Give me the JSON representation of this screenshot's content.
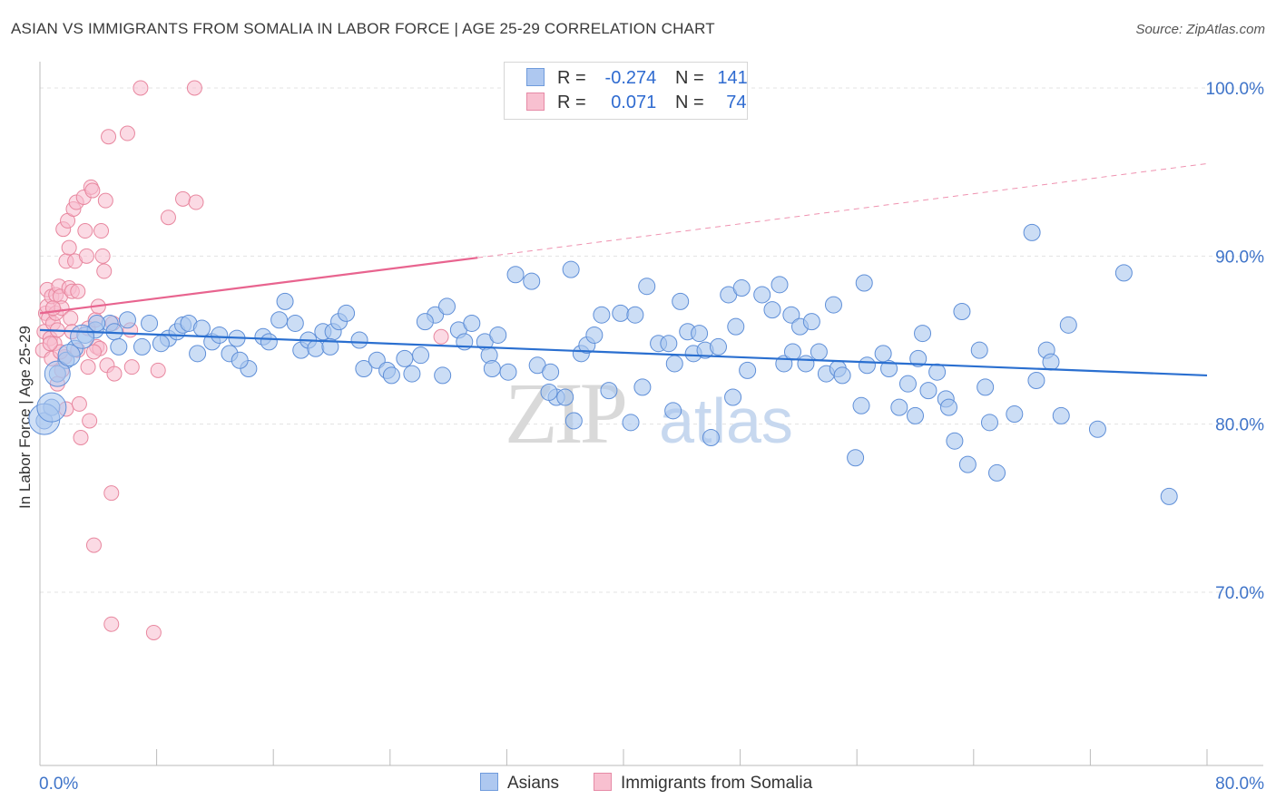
{
  "title": "ASIAN VS IMMIGRANTS FROM SOMALIA IN LABOR FORCE | AGE 25-29 CORRELATION CHART",
  "source": "Source: ZipAtlas.com",
  "watermark": {
    "zip": "ZIP",
    "atlas": "atlas"
  },
  "legend": {
    "r_label": "R =",
    "n_label": "N =",
    "rows": [
      {
        "name": "Asians",
        "r": "-0.274",
        "n": "141",
        "fill": "#aec8f0",
        "stroke": "#6f9bdc"
      },
      {
        "name": "Immigrants from Somalia",
        "r": "0.071",
        "n": "74",
        "fill": "#f8c0d0",
        "stroke": "#e68aa6"
      }
    ]
  },
  "colors": {
    "blue_fill": "#a9c6ef",
    "blue_stroke": "#5f8fd8",
    "blue_line": "#2a6fd0",
    "pink_fill": "#f7bccd",
    "pink_stroke": "#e8879f",
    "pink_line": "#e8648f",
    "grid": "#e3e3e3",
    "tick_text": "#3f74c9"
  },
  "chart_data": {
    "type": "scatter",
    "title": "ASIAN VS IMMIGRANTS FROM SOMALIA IN LABOR FORCE | AGE 25-29 CORRELATION CHART",
    "xlabel": "",
    "ylabel": "In Labor Force | Age 25-29",
    "xlim": [
      0,
      80
    ],
    "ylim": [
      60,
      101
    ],
    "x_tick_labels": [
      {
        "v": 0,
        "label": "0.0%"
      },
      {
        "v": 80,
        "label": "80.0%"
      }
    ],
    "y_tick_labels": [
      {
        "v": 100,
        "label": "100.0%"
      },
      {
        "v": 90,
        "label": "90.0%"
      },
      {
        "v": 80,
        "label": "80.0%"
      },
      {
        "v": 70,
        "label": "70.0%"
      }
    ],
    "gridlines_y": [
      70,
      80,
      90,
      100
    ],
    "series": [
      {
        "name": "Asians",
        "r": -0.274,
        "n": 141,
        "trend": {
          "x0": 0,
          "y0": 85.6,
          "x1": 80,
          "y1": 82.9
        },
        "points": [
          [
            0.3,
            80.2
          ],
          [
            0.8,
            81.0
          ],
          [
            1.2,
            83.0
          ],
          [
            1.8,
            83.8
          ],
          [
            2.4,
            84.5
          ],
          [
            3.1,
            85.3
          ],
          [
            3.8,
            85.6
          ],
          [
            4.8,
            86.0
          ],
          [
            5.1,
            85.5
          ],
          [
            5.4,
            84.6
          ],
          [
            6.0,
            86.2
          ],
          [
            7.0,
            84.6
          ],
          [
            7.5,
            86.0
          ],
          [
            8.8,
            85.1
          ],
          [
            9.4,
            85.5
          ],
          [
            9.8,
            85.9
          ],
          [
            10.2,
            86.0
          ],
          [
            10.8,
            84.2
          ],
          [
            11.1,
            85.7
          ],
          [
            11.8,
            84.9
          ],
          [
            12.3,
            85.3
          ],
          [
            13.0,
            84.2
          ],
          [
            13.5,
            85.1
          ],
          [
            14.3,
            83.3
          ],
          [
            15.3,
            85.2
          ],
          [
            15.7,
            84.9
          ],
          [
            16.4,
            86.2
          ],
          [
            16.8,
            87.3
          ],
          [
            17.5,
            86.0
          ],
          [
            17.9,
            84.4
          ],
          [
            18.4,
            85.0
          ],
          [
            18.9,
            84.5
          ],
          [
            19.4,
            85.5
          ],
          [
            20.1,
            85.5
          ],
          [
            20.5,
            86.1
          ],
          [
            21.0,
            86.6
          ],
          [
            21.9,
            85.0
          ],
          [
            22.2,
            83.3
          ],
          [
            23.1,
            83.8
          ],
          [
            23.8,
            83.2
          ],
          [
            24.1,
            82.9
          ],
          [
            25.5,
            83.0
          ],
          [
            26.1,
            84.1
          ],
          [
            27.1,
            86.5
          ],
          [
            27.6,
            82.9
          ],
          [
            27.9,
            87.0
          ],
          [
            28.7,
            85.6
          ],
          [
            29.1,
            84.9
          ],
          [
            29.6,
            86.0
          ],
          [
            30.5,
            84.9
          ],
          [
            30.8,
            84.1
          ],
          [
            31.4,
            85.3
          ],
          [
            32.1,
            83.1
          ],
          [
            32.6,
            88.9
          ],
          [
            33.7,
            88.5
          ],
          [
            34.1,
            83.5
          ],
          [
            35.0,
            83.1
          ],
          [
            35.4,
            81.6
          ],
          [
            36.0,
            81.6
          ],
          [
            36.4,
            89.2
          ],
          [
            36.6,
            80.2
          ],
          [
            37.1,
            84.2
          ],
          [
            37.5,
            84.7
          ],
          [
            38.0,
            85.3
          ],
          [
            38.5,
            86.5
          ],
          [
            39.0,
            82.0
          ],
          [
            39.8,
            86.6
          ],
          [
            40.5,
            80.1
          ],
          [
            40.8,
            86.5
          ],
          [
            41.3,
            82.2
          ],
          [
            41.6,
            88.2
          ],
          [
            42.4,
            84.8
          ],
          [
            43.1,
            84.8
          ],
          [
            43.5,
            83.6
          ],
          [
            43.9,
            87.3
          ],
          [
            44.4,
            85.5
          ],
          [
            44.8,
            84.2
          ],
          [
            45.2,
            85.4
          ],
          [
            45.6,
            84.4
          ],
          [
            46.0,
            79.2
          ],
          [
            46.5,
            84.6
          ],
          [
            47.2,
            87.7
          ],
          [
            47.7,
            85.8
          ],
          [
            48.1,
            88.1
          ],
          [
            48.5,
            83.2
          ],
          [
            49.5,
            87.7
          ],
          [
            50.2,
            86.8
          ],
          [
            50.7,
            88.3
          ],
          [
            51.0,
            83.6
          ],
          [
            51.5,
            86.5
          ],
          [
            52.1,
            85.8
          ],
          [
            52.5,
            83.6
          ],
          [
            52.9,
            86.1
          ],
          [
            53.4,
            84.3
          ],
          [
            53.9,
            83.0
          ],
          [
            54.4,
            87.1
          ],
          [
            54.7,
            83.3
          ],
          [
            55.0,
            82.9
          ],
          [
            55.9,
            78.0
          ],
          [
            56.3,
            81.1
          ],
          [
            56.5,
            88.4
          ],
          [
            57.8,
            84.2
          ],
          [
            58.2,
            83.3
          ],
          [
            58.9,
            81.0
          ],
          [
            59.5,
            82.4
          ],
          [
            60.0,
            80.5
          ],
          [
            60.5,
            85.4
          ],
          [
            60.9,
            82.0
          ],
          [
            61.5,
            83.1
          ],
          [
            62.1,
            81.5
          ],
          [
            62.3,
            81.0
          ],
          [
            62.7,
            79.0
          ],
          [
            63.2,
            86.7
          ],
          [
            63.6,
            77.6
          ],
          [
            64.4,
            84.4
          ],
          [
            64.8,
            82.2
          ],
          [
            65.1,
            80.1
          ],
          [
            65.6,
            77.1
          ],
          [
            66.8,
            80.6
          ],
          [
            68.0,
            91.4
          ],
          [
            68.3,
            82.6
          ],
          [
            69.0,
            84.4
          ],
          [
            69.3,
            83.7
          ],
          [
            70.0,
            80.5
          ],
          [
            70.5,
            85.9
          ],
          [
            72.5,
            79.7
          ],
          [
            74.3,
            89.0
          ],
          [
            77.4,
            75.7
          ],
          [
            3.9,
            86.0
          ],
          [
            8.3,
            84.8
          ],
          [
            13.7,
            83.8
          ],
          [
            19.9,
            84.6
          ],
          [
            25.0,
            83.9
          ],
          [
            26.4,
            86.1
          ],
          [
            31.0,
            83.3
          ],
          [
            34.9,
            81.9
          ],
          [
            43.4,
            80.8
          ],
          [
            47.5,
            81.6
          ],
          [
            51.6,
            84.3
          ],
          [
            56.7,
            83.5
          ],
          [
            60.2,
            83.9
          ]
        ],
        "big_points": [
          [
            0.3,
            80.3
          ],
          [
            0.8,
            81.0
          ],
          [
            1.2,
            83.0
          ],
          [
            2.0,
            84.1
          ],
          [
            2.9,
            85.2
          ]
        ]
      },
      {
        "name": "Immigrants from Somalia",
        "r": 0.071,
        "n": 74,
        "trend": {
          "x0": 0,
          "y0": 86.6,
          "x1": 30,
          "y1": 89.9
        },
        "trend_dashed": {
          "x0": 30,
          "y0": 89.9,
          "x1": 80,
          "y1": 95.5
        },
        "points": [
          [
            0.2,
            84.4
          ],
          [
            0.3,
            85.5
          ],
          [
            0.4,
            86.6
          ],
          [
            0.5,
            87.0
          ],
          [
            0.5,
            88.0
          ],
          [
            0.6,
            86.3
          ],
          [
            0.7,
            85.1
          ],
          [
            0.8,
            83.9
          ],
          [
            0.8,
            87.6
          ],
          [
            0.9,
            86.0
          ],
          [
            1.0,
            84.8
          ],
          [
            1.1,
            86.6
          ],
          [
            1.1,
            87.7
          ],
          [
            1.2,
            85.6
          ],
          [
            1.2,
            82.4
          ],
          [
            1.3,
            88.2
          ],
          [
            1.4,
            87.6
          ],
          [
            1.5,
            86.9
          ],
          [
            1.5,
            83.2
          ],
          [
            1.6,
            91.6
          ],
          [
            1.7,
            84.0
          ],
          [
            1.8,
            89.7
          ],
          [
            1.8,
            80.9
          ],
          [
            1.9,
            92.1
          ],
          [
            2.0,
            90.5
          ],
          [
            2.0,
            88.1
          ],
          [
            2.1,
            86.3
          ],
          [
            2.2,
            87.9
          ],
          [
            2.3,
            92.8
          ],
          [
            2.4,
            89.7
          ],
          [
            2.5,
            93.2
          ],
          [
            2.6,
            87.9
          ],
          [
            2.6,
            84.4
          ],
          [
            2.7,
            81.2
          ],
          [
            2.8,
            79.2
          ],
          [
            3.0,
            93.5
          ],
          [
            3.1,
            91.5
          ],
          [
            3.2,
            90.0
          ],
          [
            3.3,
            85.7
          ],
          [
            3.3,
            83.4
          ],
          [
            3.4,
            80.2
          ],
          [
            3.5,
            94.1
          ],
          [
            3.6,
            93.9
          ],
          [
            3.7,
            72.8
          ],
          [
            3.8,
            86.2
          ],
          [
            3.9,
            84.6
          ],
          [
            4.0,
            87.0
          ],
          [
            4.1,
            84.5
          ],
          [
            4.2,
            91.5
          ],
          [
            4.3,
            90.0
          ],
          [
            4.4,
            89.1
          ],
          [
            4.5,
            93.3
          ],
          [
            4.6,
            83.5
          ],
          [
            4.7,
            97.1
          ],
          [
            4.9,
            75.9
          ],
          [
            4.9,
            68.1
          ],
          [
            5.0,
            86.0
          ],
          [
            5.1,
            83.0
          ],
          [
            6.0,
            97.3
          ],
          [
            6.2,
            85.6
          ],
          [
            6.3,
            83.4
          ],
          [
            6.9,
            100.0
          ],
          [
            7.8,
            67.6
          ],
          [
            8.1,
            83.2
          ],
          [
            8.8,
            92.3
          ],
          [
            9.8,
            93.4
          ],
          [
            10.6,
            100.0
          ],
          [
            10.7,
            93.2
          ],
          [
            2.2,
            85.5
          ],
          [
            1.4,
            84.3
          ],
          [
            0.9,
            86.9
          ],
          [
            3.7,
            84.3
          ],
          [
            27.5,
            85.2
          ],
          [
            0.7,
            84.8
          ]
        ]
      }
    ]
  }
}
